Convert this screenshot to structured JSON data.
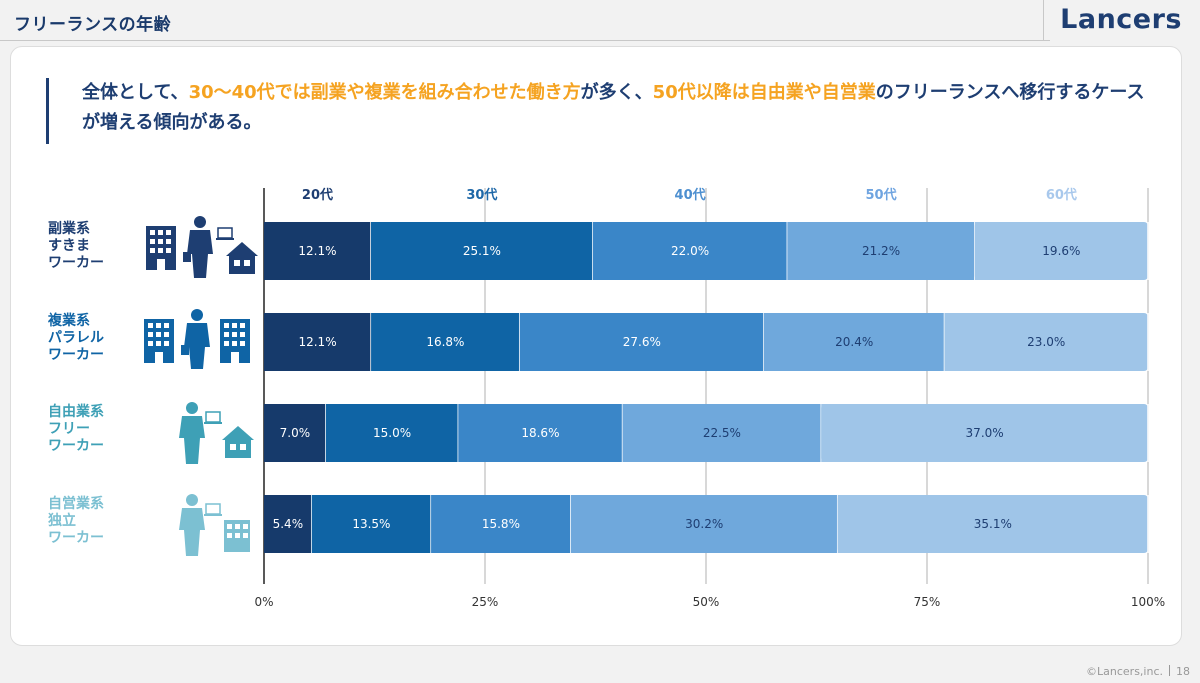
{
  "header": {
    "page_title": "フリーランスの年齢",
    "logo": "Lancers"
  },
  "lead": {
    "parts": [
      {
        "text": "全体として、",
        "highlight": false
      },
      {
        "text": "30〜40代では副業や複業を組み合わせた働き方",
        "highlight": true
      },
      {
        "text": "が多く、",
        "highlight": false
      },
      {
        "text": "50代以降は自由業や自営業",
        "highlight": true
      },
      {
        "text": "のフリーランスへ移行するケースが増える傾向がある。",
        "highlight": false
      }
    ]
  },
  "colors": {
    "navy": "#1e3e72",
    "highlight": "#f5a321",
    "series": [
      "#163a6b",
      "#0f64a5",
      "#3a86c8",
      "#6fa8dc",
      "#9fc5e8"
    ]
  },
  "rows": [
    {
      "lines": [
        "副業系",
        "すきま",
        "ワーカー"
      ],
      "color": "#1e3e72",
      "icons": [
        "building-icon",
        "businessman-icon",
        "laptop-icon",
        "house-icon"
      ]
    },
    {
      "lines": [
        "複業系",
        "パラレル",
        "ワーカー"
      ],
      "color": "#0f64a5",
      "icons": [
        "building-icon",
        "businessman-icon",
        "building-icon"
      ]
    },
    {
      "lines": [
        "自由業系",
        "フリー",
        "ワーカー"
      ],
      "color": "#3ea0b6",
      "icons": [
        "worker-icon",
        "laptop-icon",
        "house-icon"
      ]
    },
    {
      "lines": [
        "自営業系",
        "独立",
        "ワーカー"
      ],
      "color": "#7cc0d2",
      "icons": [
        "worker-icon",
        "laptop-icon",
        "office-icon"
      ]
    }
  ],
  "chart_data": {
    "type": "bar",
    "orientation": "horizontal",
    "stacked": true,
    "categories": [
      "副業系すきまワーカー",
      "複業系パラレルワーカー",
      "自由業系フリーワーカー",
      "自営業系独立ワーカー"
    ],
    "series": [
      {
        "name": "20代",
        "values": [
          12.1,
          12.1,
          7.0,
          5.4
        ],
        "labels": [
          "12.1%",
          "12.1%",
          "7.0%",
          "5.4%"
        ]
      },
      {
        "name": "30代",
        "values": [
          25.1,
          16.8,
          15.0,
          13.5
        ],
        "labels": [
          "25.1%",
          "16.8%",
          "15.0%",
          "13.5%"
        ]
      },
      {
        "name": "40代",
        "values": [
          22.0,
          27.6,
          18.6,
          15.8
        ],
        "labels": [
          "22.0%",
          "27.6%",
          "18.6%",
          "15.8%"
        ]
      },
      {
        "name": "50代",
        "values": [
          21.2,
          20.4,
          22.5,
          30.2
        ],
        "labels": [
          "21.2%",
          "20.4%",
          "22.5%",
          "30.2%"
        ]
      },
      {
        "name": "60代",
        "values": [
          19.6,
          23.0,
          37.0,
          35.1
        ],
        "labels": [
          "19.6%",
          "23.0%",
          "37.0%",
          "35.1%"
        ]
      }
    ],
    "xlim": [
      0,
      100
    ],
    "xticks": [
      "0%",
      "25%",
      "50%",
      "75%",
      "100%"
    ],
    "legend_colors": [
      "#1e3e72",
      "#1f68a8",
      "#4d8fd0",
      "#6fa4e0",
      "#a8c8ec"
    ],
    "grid": true
  },
  "footer": {
    "copyright": "©Lancers,inc.",
    "page_number": "18"
  }
}
